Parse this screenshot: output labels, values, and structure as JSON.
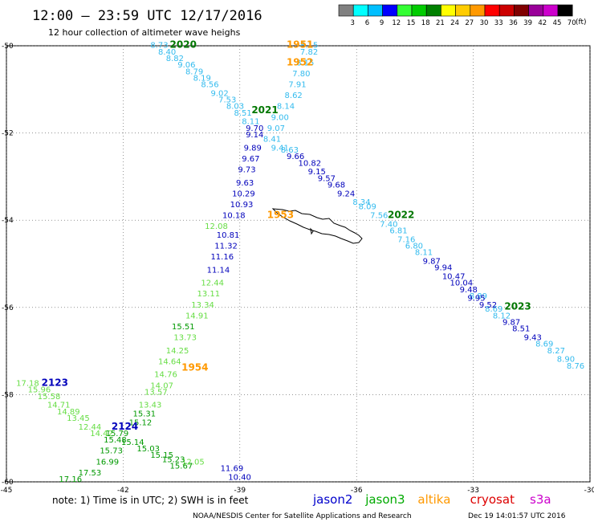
{
  "header": {
    "title": "12:00 – 23:59 UTC 12/17/2016",
    "subtitle": "12 hour collection of altimeter wave heighs"
  },
  "colorbar": {
    "labels": [
      "3",
      "6",
      "9",
      "12",
      "15",
      "18",
      "21",
      "24",
      "27",
      "30",
      "33",
      "36",
      "39",
      "42",
      "45",
      "70"
    ],
    "unit": "(ft)",
    "colors": [
      "#808080",
      "#00ffff",
      "#00bfff",
      "#0000ff",
      "#33ff33",
      "#00cc00",
      "#008000",
      "#ffff00",
      "#ffcc00",
      "#ff9900",
      "#ff0000",
      "#cc0000",
      "#800000",
      "#990099",
      "#cc00cc",
      "#000000"
    ]
  },
  "footer": {
    "note": "note: 1) Time is in UTC; 2) SWH is in feet",
    "credit": "NOAA/NESDIS Center for Satellite Applications and Research",
    "timestamp": "Dec 19 14:01:57 UTC 2016",
    "satellites": [
      {
        "name": "jason2",
        "color": "#0000cc"
      },
      {
        "name": "jason3",
        "color": "#00aa00"
      },
      {
        "name": "altika",
        "color": "#ff9900"
      },
      {
        "name": "cryosat",
        "color": "#dd0000"
      },
      {
        "name": "s3a",
        "color": "#cc00cc"
      }
    ]
  },
  "chart_data": {
    "type": "scatter",
    "xlim": [
      -45,
      -30
    ],
    "ylim": [
      -60,
      -50
    ],
    "x_ticks": [
      "-45",
      "-42",
      "-39",
      "-36",
      "-33",
      "-30"
    ],
    "y_ticks": [
      "-50",
      "-52",
      "-54",
      "-56",
      "-58",
      "-60"
    ],
    "x_tick_values": [
      -45,
      -42,
      -39,
      -36,
      -33,
      -30
    ],
    "y_tick_values": [
      -50,
      -52,
      -54,
      -56,
      -58,
      -60
    ],
    "grid": true,
    "colors": {
      "light_blue": "#33bbee",
      "dark_blue": "#0000bb",
      "light_green": "#66dd44",
      "green": "#009900",
      "orange": "#ff9900",
      "dark_green": "#007700"
    },
    "time_labels": [
      {
        "text": "2020",
        "x": -40.8,
        "y": -50.05,
        "color": "dark_green"
      },
      {
        "text": "1951",
        "x": -37.8,
        "y": -50.05,
        "color": "orange"
      },
      {
        "text": "1952",
        "x": -37.8,
        "y": -50.45,
        "color": "orange"
      },
      {
        "text": "2021",
        "x": -38.7,
        "y": -51.55,
        "color": "dark_green"
      },
      {
        "text": "1953",
        "x": -38.3,
        "y": -53.95,
        "color": "orange"
      },
      {
        "text": "2022",
        "x": -35.2,
        "y": -53.95,
        "color": "dark_green"
      },
      {
        "text": "2023",
        "x": -32.2,
        "y": -56.05,
        "color": "dark_green"
      },
      {
        "text": "1954",
        "x": -40.5,
        "y": -57.45,
        "color": "orange"
      },
      {
        "text": "2123",
        "x": -44.1,
        "y": -57.8,
        "color": "dark_blue"
      },
      {
        "text": "2124",
        "x": -42.3,
        "y": -58.8,
        "color": "dark_blue"
      }
    ],
    "series": [
      {
        "color": "light_blue",
        "points": [
          [
            "8.73",
            -41.3,
            -50.05
          ],
          [
            "8.40",
            -41.1,
            -50.2
          ],
          [
            "8.82",
            -40.9,
            -50.35
          ],
          [
            "9.06",
            -40.6,
            -50.5
          ],
          [
            "8.79",
            -40.4,
            -50.65
          ],
          [
            "8.19",
            -40.2,
            -50.8
          ],
          [
            "8.56",
            -40.0,
            -50.95
          ],
          [
            "9.02",
            -39.75,
            -51.15
          ],
          [
            "7.53",
            -39.55,
            -51.3
          ],
          [
            "8.03",
            -39.35,
            -51.45
          ],
          [
            "8.51",
            -39.15,
            -51.6
          ],
          [
            "8.11",
            -38.95,
            -51.8
          ],
          [
            "8.15",
            -37.45,
            -50.05
          ],
          [
            "7.82",
            -37.45,
            -50.2
          ],
          [
            "8.15",
            -37.55,
            -50.45
          ],
          [
            "7.80",
            -37.65,
            -50.7
          ],
          [
            "7.91",
            -37.75,
            -50.95
          ],
          [
            "8.62",
            -37.85,
            -51.2
          ],
          [
            "8.14",
            -38.05,
            -51.45
          ],
          [
            "9.00",
            -38.2,
            -51.7
          ],
          [
            "9.07",
            -38.3,
            -51.95
          ],
          [
            "8.41",
            -38.4,
            -52.2
          ],
          [
            "9.41",
            -38.2,
            -52.4
          ],
          [
            "8.63",
            -37.95,
            -52.45
          ],
          [
            "8.34",
            -36.1,
            -53.65
          ],
          [
            "8.09",
            -35.95,
            -53.75
          ],
          [
            "7.56",
            -35.65,
            -53.95
          ],
          [
            "7.40",
            -35.4,
            -54.15
          ],
          [
            "6.81",
            -35.15,
            -54.3
          ],
          [
            "7.16",
            -34.95,
            -54.5
          ],
          [
            "6.80",
            -34.75,
            -54.65
          ],
          [
            "8.11",
            -34.5,
            -54.8
          ],
          [
            "8.89",
            -33.1,
            -55.8
          ],
          [
            "8.69",
            -32.7,
            -56.1
          ],
          [
            "8.12",
            -32.5,
            -56.25
          ],
          [
            "8.69",
            -31.4,
            -56.9
          ],
          [
            "8.27",
            -31.1,
            -57.05
          ],
          [
            "8.90",
            -30.85,
            -57.25
          ],
          [
            "8.76",
            -30.6,
            -57.4
          ]
        ]
      },
      {
        "color": "dark_blue",
        "points": [
          [
            "9.70",
            -38.85,
            -51.95
          ],
          [
            "9.14",
            -38.85,
            -52.1
          ],
          [
            "9.89",
            -38.9,
            -52.4
          ],
          [
            "9.67",
            -38.95,
            -52.65
          ],
          [
            "9.73",
            -39.05,
            -52.9
          ],
          [
            "9.63",
            -39.1,
            -53.2
          ],
          [
            "10.29",
            -39.2,
            -53.45
          ],
          [
            "10.93",
            -39.25,
            -53.7
          ],
          [
            "10.18",
            -39.45,
            -53.95
          ],
          [
            "10.81",
            -39.6,
            -54.4
          ],
          [
            "11.32",
            -39.65,
            -54.65
          ],
          [
            "11.16",
            -39.75,
            -54.9
          ],
          [
            "11.14",
            -39.85,
            -55.2
          ],
          [
            "9.66",
            -37.8,
            -52.6
          ],
          [
            "10.82",
            -37.5,
            -52.75
          ],
          [
            "9.15",
            -37.25,
            -52.95
          ],
          [
            "9.57",
            -37.0,
            -53.1
          ],
          [
            "9.68",
            -36.75,
            -53.25
          ],
          [
            "9.24",
            -36.5,
            -53.45
          ],
          [
            "9.87",
            -34.3,
            -55.0
          ],
          [
            "9.94",
            -34.0,
            -55.15
          ],
          [
            "10.47",
            -33.8,
            -55.35
          ],
          [
            "10.04",
            -33.6,
            -55.5
          ],
          [
            "9.48",
            -33.35,
            -55.65
          ],
          [
            "9.95",
            -33.15,
            -55.85
          ],
          [
            "9.52",
            -32.85,
            -56.0
          ],
          [
            "9.87",
            -32.25,
            -56.4
          ],
          [
            "8.51",
            -32.0,
            -56.55
          ],
          [
            "9.43",
            -31.7,
            -56.75
          ],
          [
            "11.69",
            -39.5,
            -59.75
          ],
          [
            "10.40",
            -39.3,
            -59.95
          ]
        ]
      },
      {
        "color": "light_green",
        "points": [
          [
            "12.08",
            -39.9,
            -54.2
          ],
          [
            "12.44",
            -40.0,
            -55.5
          ],
          [
            "13.11",
            -40.1,
            -55.75
          ],
          [
            "13.34",
            -40.25,
            -56.0
          ],
          [
            "14.91",
            -40.4,
            -56.25
          ],
          [
            "13.73",
            -40.7,
            -56.75
          ],
          [
            "14.25",
            -40.9,
            -57.05
          ],
          [
            "14.64",
            -41.1,
            -57.3
          ],
          [
            "14.76",
            -41.2,
            -57.6
          ],
          [
            "14.07",
            -41.3,
            -57.85
          ],
          [
            "13.57",
            -41.45,
            -58.0
          ],
          [
            "13.43",
            -41.6,
            -58.3
          ],
          [
            "17.18",
            -44.75,
            -57.8
          ],
          [
            "15.96",
            -44.45,
            -57.95
          ],
          [
            "15.58",
            -44.2,
            -58.1
          ],
          [
            "14.71",
            -43.95,
            -58.3
          ],
          [
            "14.89",
            -43.7,
            -58.45
          ],
          [
            "13.45",
            -43.45,
            -58.6
          ],
          [
            "12.44",
            -43.15,
            -58.8
          ],
          [
            "14.42",
            -42.85,
            -58.95
          ],
          [
            "12.05",
            -40.5,
            -59.6
          ]
        ]
      },
      {
        "color": "green",
        "points": [
          [
            "15.51",
            -40.75,
            -56.5
          ],
          [
            "15.31",
            -41.75,
            -58.5
          ],
          [
            "15.12",
            -41.85,
            -58.7
          ],
          [
            "15.79",
            -42.45,
            -58.95
          ],
          [
            "15.48",
            -42.5,
            -59.1
          ],
          [
            "15.14",
            -42.05,
            -59.15
          ],
          [
            "15.73",
            -42.6,
            -59.35
          ],
          [
            "15.03",
            -41.65,
            -59.3
          ],
          [
            "15.15",
            -41.3,
            -59.45
          ],
          [
            "15.23",
            -41.0,
            -59.55
          ],
          [
            "15.67",
            -40.8,
            -59.7
          ],
          [
            "16.99",
            -42.7,
            -59.6
          ],
          [
            "17.53",
            -43.15,
            -59.85
          ],
          [
            "17.16",
            -43.65,
            -60.0
          ]
        ]
      }
    ]
  }
}
